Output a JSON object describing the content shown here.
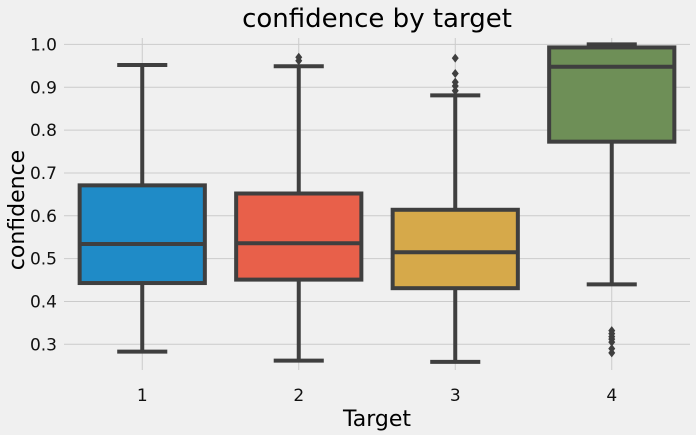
{
  "chart_data": {
    "type": "box",
    "title": "confidence by target",
    "xlabel": "Target",
    "ylabel": "confidence",
    "ylim": [
      0.24,
      1.015
    ],
    "yticks": [
      "0.3",
      "0.4",
      "0.5",
      "0.6",
      "0.7",
      "0.8",
      "0.9",
      "1.0"
    ],
    "grid": true,
    "categories": [
      "1",
      "2",
      "3",
      "4"
    ],
    "boxes": [
      {
        "category": "1",
        "color": "#1f8bc7",
        "whisker_low": 0.283,
        "q1": 0.443,
        "median": 0.534,
        "q3": 0.671,
        "whisker_high": 0.952,
        "outliers": []
      },
      {
        "category": "2",
        "color": "#e8604a",
        "whisker_low": 0.262,
        "q1": 0.451,
        "median": 0.536,
        "q3": 0.652,
        "whisker_high": 0.949,
        "outliers": [
          0.962,
          0.97
        ]
      },
      {
        "category": "3",
        "color": "#d6a94a",
        "whisker_low": 0.259,
        "q1": 0.431,
        "median": 0.515,
        "q3": 0.614,
        "whisker_high": 0.881,
        "outliers": [
          0.892,
          0.903,
          0.912,
          0.932,
          0.968
        ]
      },
      {
        "category": "4",
        "color": "#6e8f57",
        "whisker_low": 0.44,
        "q1": 0.773,
        "median": 0.948,
        "q3": 0.993,
        "whisker_high": 1.0,
        "outliers": [
          0.28,
          0.29,
          0.305,
          0.312,
          0.318,
          0.325,
          0.332
        ]
      }
    ]
  }
}
